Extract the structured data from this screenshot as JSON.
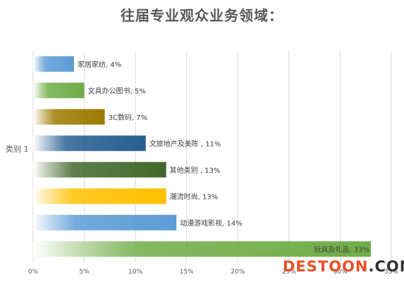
{
  "chart_data": {
    "type": "bar",
    "orientation": "horizontal",
    "title": "往届专业观众业务领域：",
    "ylabel": "类别 1",
    "xlim": [
      0,
      35
    ],
    "xticks": [
      "0%",
      "5%",
      "10%",
      "15%",
      "20%",
      "25%",
      "30%",
      "35%"
    ],
    "grid": true,
    "bars": [
      {
        "label": "家居家纺, 4%",
        "value": 4,
        "color": "#5b9bd5"
      },
      {
        "label": "文具办公图书, 5%",
        "value": 5,
        "color": "#70ad47"
      },
      {
        "label": "3C数码, 7%",
        "value": 7,
        "color": "#9c7a00"
      },
      {
        "label": "文旅地产及美陈 , 11%",
        "value": 11,
        "color": "#255e91"
      },
      {
        "label": "其他类别 , 13%",
        "value": 13,
        "color": "#43682b"
      },
      {
        "label": "潮流时尚, 13%",
        "value": 13,
        "color": "#ffc000"
      },
      {
        "label": "动漫游戏影视, 14%",
        "value": 14,
        "color": "#5b9bd5"
      },
      {
        "label": "玩具及礼品, 33%",
        "value": 33,
        "color": "#70ad47"
      }
    ]
  },
  "watermark": {
    "part1": "DESTOON",
    "part2": ".COM"
  }
}
